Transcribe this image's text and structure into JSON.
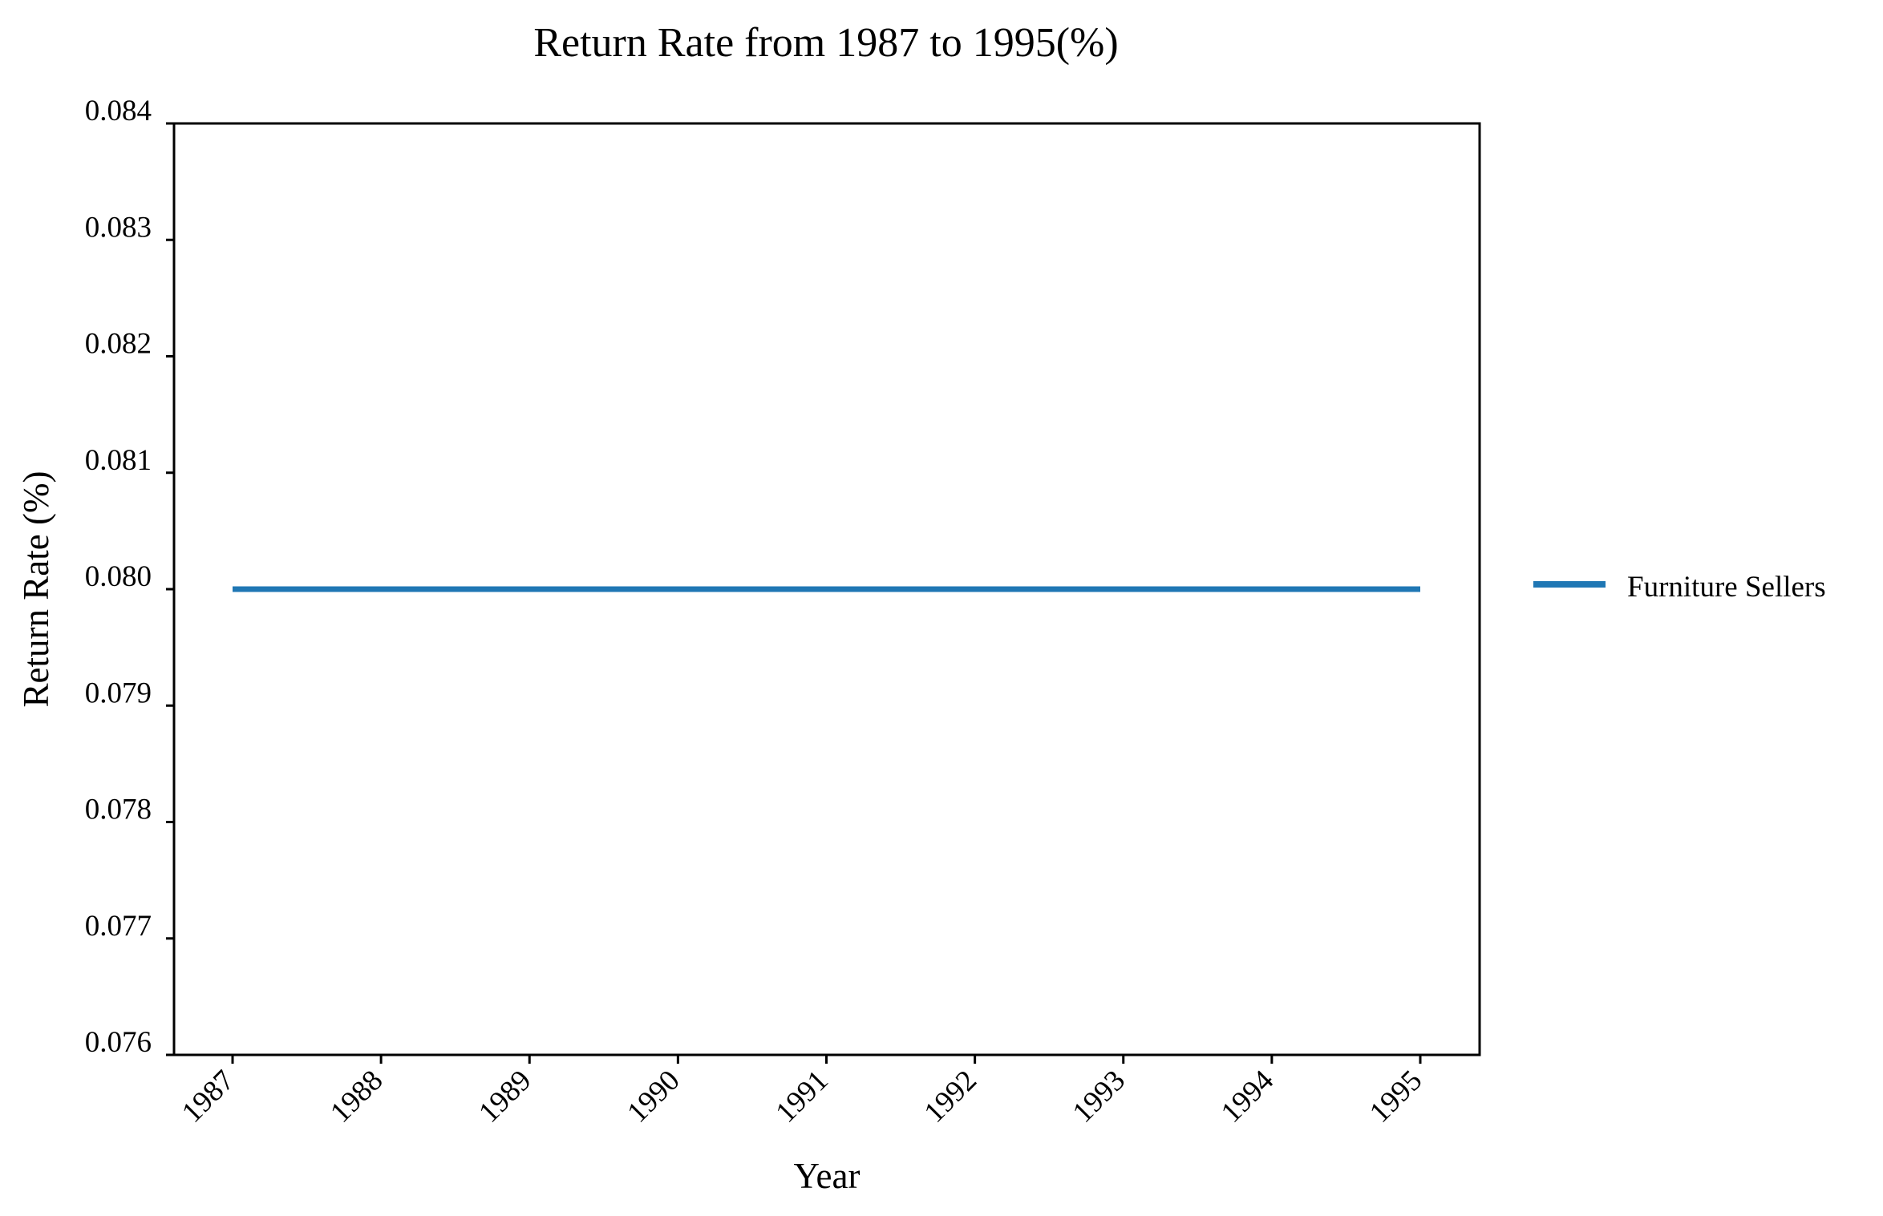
{
  "chart_data": {
    "type": "line",
    "title": "Return Rate from 1987 to 1995(%)",
    "xlabel": "Year",
    "ylabel": "Return Rate (%)",
    "x": [
      "1987",
      "1988",
      "1989",
      "1990",
      "1991",
      "1992",
      "1993",
      "1994",
      "1995"
    ],
    "series": [
      {
        "name": "Furniture Sellers",
        "color": "#1f77b4",
        "values": [
          0.08,
          0.08,
          0.08,
          0.08,
          0.08,
          0.08,
          0.08,
          0.08,
          0.08
        ]
      }
    ],
    "ylim": [
      0.076,
      0.084
    ],
    "yticks": [
      "0.076",
      "0.077",
      "0.078",
      "0.079",
      "0.080",
      "0.081",
      "0.082",
      "0.083",
      "0.084"
    ],
    "xtick_rotation": 45,
    "grid": false,
    "legend_position": "right"
  }
}
